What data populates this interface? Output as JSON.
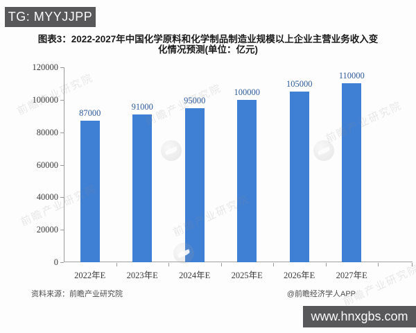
{
  "badges": {
    "top_left": "TG: MYYJJPP",
    "bottom_right": "www.hnxgbs.com"
  },
  "title": {
    "line1": "图表3：2022-2027年中国化学原料和化学制品制造业规模以上企业主营业务收入变",
    "line2": "化情况预测(单位：亿元)"
  },
  "footer": {
    "source": "资料来源：前瞻产业研究院",
    "credit": "@前瞻经济学人APP"
  },
  "watermark": {
    "text": "前瞻产业研究院"
  },
  "chart_data": {
    "type": "bar",
    "title": "图表3：2022-2027年中国化学原料和化学制品制造业规模以上企业主营业务收入变化情况预测(单位：亿元)",
    "categories": [
      "2022年E",
      "2023年E",
      "2024年E",
      "2025年E",
      "2026年E",
      "2027年E"
    ],
    "values": [
      87000,
      91000,
      95000,
      100000,
      105000,
      110000
    ],
    "unit": "亿元",
    "xlabel": "",
    "ylabel": "",
    "ylim": [
      0,
      120000
    ],
    "yticks": [
      0,
      20000,
      40000,
      60000,
      80000,
      100000,
      120000
    ],
    "grid": false,
    "legend": null,
    "bar_color": "#3f7fd4",
    "value_label_color": "#2f5b9d"
  }
}
